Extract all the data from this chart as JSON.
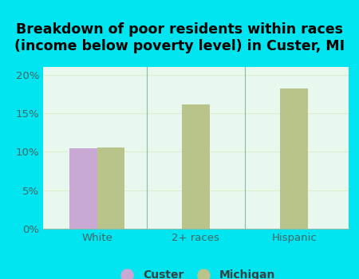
{
  "title": "Breakdown of poor residents within races\n(income below poverty level) in Custer, MI",
  "categories": [
    "White",
    "2+ races",
    "Hispanic"
  ],
  "custer_values": [
    10.5,
    null,
    null
  ],
  "michigan_values": [
    10.6,
    16.1,
    18.2
  ],
  "custer_color": "#c9a8d4",
  "michigan_color": "#b8c48a",
  "bg_color": "#00e5ef",
  "plot_bg_left": "#c8ecd6",
  "plot_bg_center": "#e8f8ee",
  "ylim": [
    0,
    21
  ],
  "yticks": [
    0,
    5,
    10,
    15,
    20
  ],
  "ytick_labels": [
    "0%",
    "5%",
    "10%",
    "15%",
    "20%"
  ],
  "bar_width": 0.28,
  "title_fontsize": 12.5,
  "legend_labels": [
    "Custer",
    "Michigan"
  ],
  "tick_color": "#88aaaa",
  "grid_color": "#ddeecc"
}
